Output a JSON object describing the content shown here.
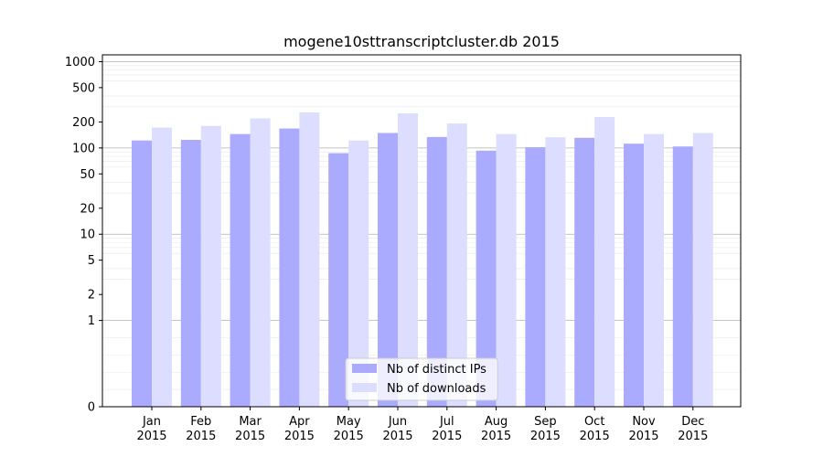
{
  "chart_data": {
    "type": "bar",
    "title": "mogene10sttranscriptcluster.db 2015",
    "xlabel": "",
    "ylabel": "",
    "y_scale": "symlog",
    "ylim": [
      0,
      1200
    ],
    "y_ticks": [
      0,
      1,
      2,
      5,
      10,
      20,
      50,
      100,
      200,
      500,
      1000
    ],
    "grid": true,
    "legend_position": "bottom-center",
    "categories": [
      "Jan\n2015",
      "Feb\n2015",
      "Mar\n2015",
      "Apr\n2015",
      "May\n2015",
      "Jun\n2015",
      "Jul\n2015",
      "Aug\n2015",
      "Sep\n2015",
      "Oct\n2015",
      "Nov\n2015",
      "Dec\n2015"
    ],
    "series": [
      {
        "name": "Nb of distinct IPs",
        "color": "#aaaaff",
        "values": [
          122,
          124,
          145,
          168,
          87,
          149,
          134,
          93,
          102,
          131,
          112,
          104
        ]
      },
      {
        "name": "Nb of downloads",
        "color": "#ddddff",
        "values": [
          172,
          180,
          220,
          258,
          122,
          252,
          192,
          145,
          133,
          228,
          145,
          149
        ]
      }
    ]
  }
}
